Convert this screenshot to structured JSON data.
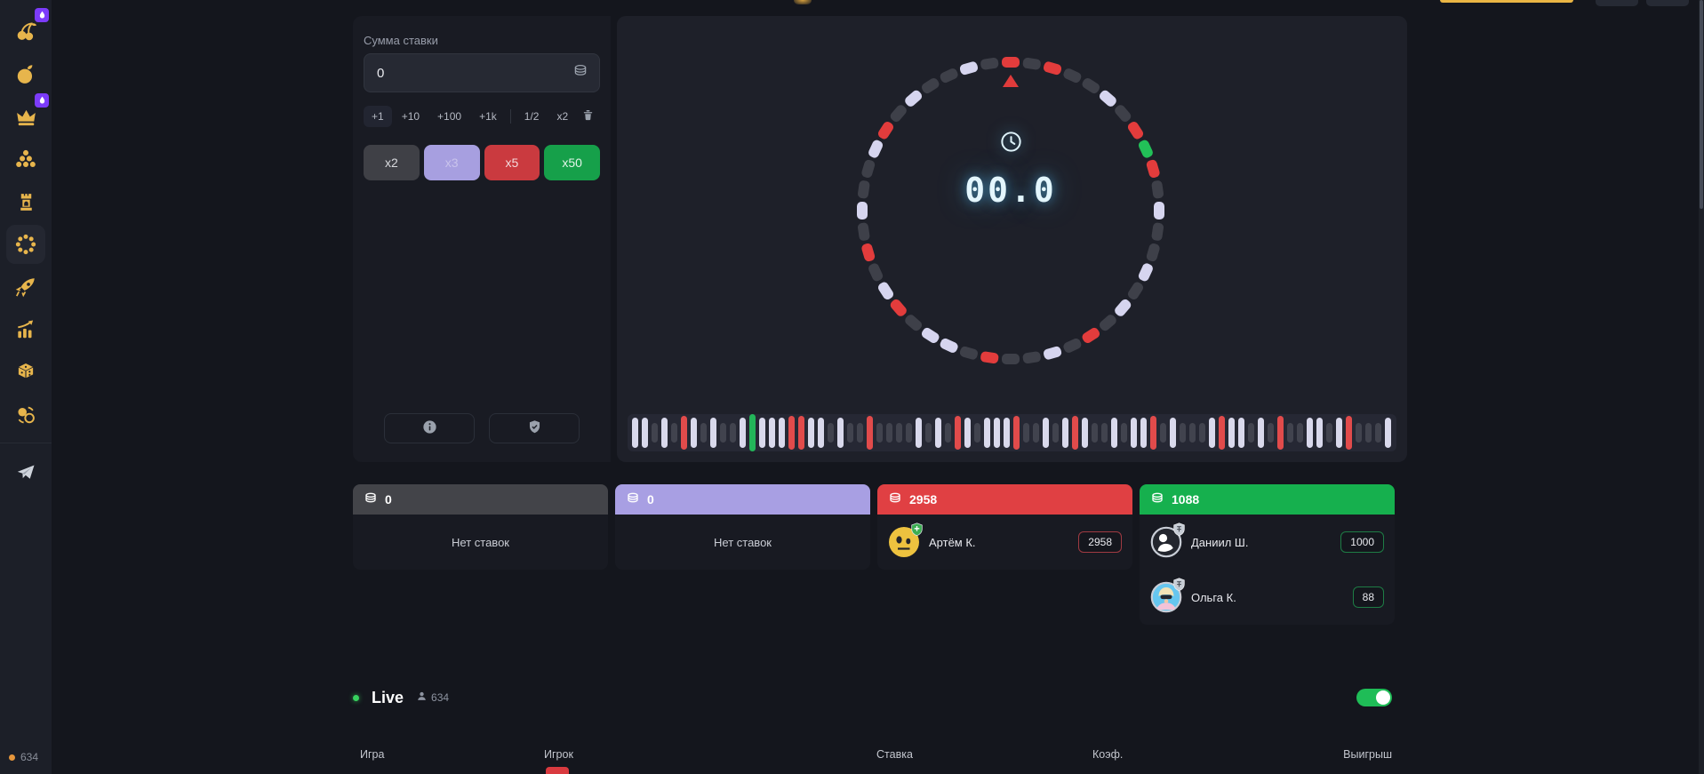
{
  "accent_colors": {
    "gold": "#e7b54c",
    "badge_purple": "#7c3bfa",
    "toggle_green": "#1fbd57",
    "timer_glow": "#5ac8ff"
  },
  "sidebar": {
    "items": [
      {
        "icon": "cherries-icon",
        "badge": true
      },
      {
        "icon": "fruit-icon",
        "badge": false
      },
      {
        "icon": "crown-icon",
        "badge": true
      },
      {
        "icon": "plinko-icon",
        "badge": false
      },
      {
        "icon": "tower-icon",
        "badge": false
      },
      {
        "icon": "wheel-icon",
        "badge": false,
        "active": true
      },
      {
        "icon": "rocket-icon",
        "badge": false
      },
      {
        "icon": "chart-icon",
        "badge": false
      },
      {
        "icon": "dice-icon",
        "badge": false
      },
      {
        "icon": "coinflip-icon",
        "badge": false
      },
      {
        "icon": "telegram-icon",
        "badge": false
      }
    ],
    "online_count": "634"
  },
  "bet_panel": {
    "amount_label": "Сумма ставки",
    "amount_value": "0",
    "quick_buttons": [
      "+1",
      "+10",
      "+100",
      "+1k"
    ],
    "modify_buttons": [
      "1/2",
      "x2"
    ],
    "multipliers": [
      {
        "label": "x2",
        "color": "#3f4046",
        "text": "#d9dade"
      },
      {
        "label": "x3",
        "color": "#a79fe0",
        "text": "#c9c3ec"
      },
      {
        "label": "x5",
        "color": "#ca3a3f",
        "text": "#f3dadb"
      },
      {
        "label": "x50",
        "color": "#16a04a",
        "text": "#e2f4e8"
      }
    ]
  },
  "wheel": {
    "timer_value": "00.0",
    "segments": "rdrddwdrgrdwddwdwdrdwddrdwwdrwdrdwddwrdwddwd",
    "segment_colors": {
      "d": "#3e4049",
      "w": "#d6d5ef",
      "r": "#e23c3c",
      "g": "#22c158"
    },
    "radius": 167
  },
  "history": {
    "pattern": "wwdwdrwdwddwgwwwrrwwdwddrddddwdwdrwdwwwrddwdwrwddwdwwrdwdddwrwwdwdrddwwdwrdddw",
    "colors": {
      "d": "#41434e",
      "w": "#d9d9ec",
      "r": "#e14b4b",
      "g": "#23b559"
    },
    "heights": {
      "d": 22,
      "w": 34,
      "r": 38,
      "g": 42
    }
  },
  "pools": [
    {
      "amount": "0",
      "header_color": "#434449",
      "empty_text": "Нет ставок",
      "players": []
    },
    {
      "amount": "0",
      "header_color": "#a89fe3",
      "empty_text": "Нет ставок",
      "players": []
    },
    {
      "amount": "2958",
      "header_color": "#e04043",
      "chip_border": "#a03a42",
      "players": [
        {
          "name": "Артём К.",
          "bet": "2958",
          "avatar": "emoji-face-avatar",
          "badge": "green-shield-badge"
        }
      ]
    },
    {
      "amount": "1088",
      "header_color": "#16b04e",
      "chip_border": "#1e7c45",
      "players": [
        {
          "name": "Даниил Ш.",
          "bet": "1000",
          "avatar": "silhouette-avatar",
          "badge": "silver-shield-badge"
        },
        {
          "name": "Ольга К.",
          "bet": "88",
          "avatar": "woman-avatar",
          "badge": "silver-shield-badge"
        }
      ]
    }
  ],
  "live": {
    "title": "Live",
    "viewers": "634",
    "toggle_on": true,
    "columns": [
      "Игра",
      "Игрок",
      "Ставка",
      "Коэф.",
      "Выигрыш"
    ]
  }
}
